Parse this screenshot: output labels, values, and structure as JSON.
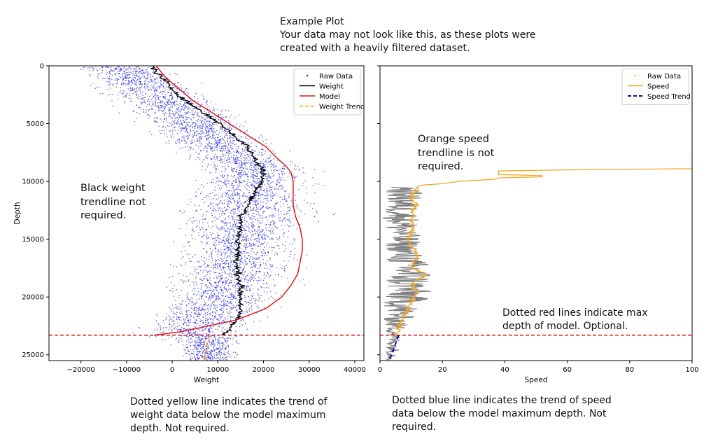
{
  "header": {
    "text": "Example Plot\nYour data may not look like this, as these plots were\ncreated with a heavily filtered dataset."
  },
  "annotations": {
    "weight_trendline": "Black weight\ntrendline not\nrequired.",
    "speed_trendline": "Orange speed\ntrendline is not\nrequired.",
    "red_lines": "Dotted red lines indicate max\ndepth of model.  Optional.",
    "yellow_line": "Dotted yellow line indicates the trend of\nweight data below the model maximum\ndepth.  Not required.",
    "blue_line": "Dotted blue line indicates the trend of speed\ndata below the model maximum depth.  Not\nrequired."
  },
  "colors": {
    "raw_weight": "#1f1fe6",
    "raw_speed": "#808080",
    "weight": "#000000",
    "model": "#e31a1c",
    "weight_trend": "#ff9f00",
    "speed": "#f5a623",
    "speed_trend": "#0000cc",
    "max_depth_line": "#cc0000"
  },
  "chart_data": [
    {
      "type": "scatter",
      "xlabel": "Weight",
      "ylabel": "Depth",
      "xlim": [
        -27000,
        42000
      ],
      "ylim": [
        25500,
        0
      ],
      "y_inverted": true,
      "xticks": [
        -20000,
        -10000,
        0,
        10000,
        20000,
        30000,
        40000
      ],
      "xtick_labels": [
        "−20000",
        "−10000",
        "0",
        "10000",
        "20000",
        "30000",
        "40000"
      ],
      "yticks": [
        0,
        5000,
        10000,
        15000,
        20000,
        25000
      ],
      "ytick_labels": [
        "0",
        "5000",
        "10000",
        "15000",
        "20000",
        "25000"
      ],
      "legend": {
        "placement": "top-right",
        "entries": [
          "Raw Data",
          "Weight",
          "Model",
          "Weight Trend"
        ]
      },
      "max_depth_line": 23300,
      "series": [
        {
          "name": "Weight",
          "depth": [
            0,
            1000,
            2000,
            3000,
            4000,
            5000,
            6000,
            7000,
            8000,
            8800,
            9500,
            10500,
            11500,
            12500,
            13000,
            14000,
            15000,
            16000,
            17000,
            18000,
            19000,
            20000,
            21000,
            22000,
            23000,
            23300
          ],
          "weight": [
            -4500,
            -2500,
            0,
            3000,
            6500,
            10500,
            13500,
            16500,
            18000,
            19500,
            20000,
            19000,
            17500,
            16000,
            15000,
            15000,
            14500,
            14500,
            14000,
            14500,
            15000,
            15000,
            15000,
            14000,
            12000,
            11000
          ]
        },
        {
          "name": "Model",
          "depth": [
            0,
            1000,
            2000,
            3000,
            4000,
            5000,
            6000,
            7000,
            8000,
            8700,
            9200,
            10000,
            11000,
            12000,
            13000,
            14000,
            15000,
            16000,
            17000,
            18000,
            19000,
            20000,
            21000,
            22000,
            23000,
            23300
          ],
          "weight": [
            -3500,
            -1500,
            1500,
            4500,
            8500,
            12500,
            16500,
            20500,
            23000,
            25000,
            26000,
            26500,
            26500,
            26500,
            27000,
            28000,
            28500,
            28500,
            28000,
            27500,
            26000,
            24000,
            20500,
            14000,
            2000,
            -4000
          ]
        },
        {
          "name": "Weight Trend",
          "depth": [
            23300,
            25500
          ],
          "weight": [
            8000,
            7000
          ]
        }
      ],
      "raw_data_envelope": {
        "depth": [
          0,
          2000,
          4000,
          6000,
          8000,
          9000,
          10000,
          12000,
          13000,
          14000,
          16000,
          18000,
          20000,
          22000,
          23000,
          24000,
          25500
        ],
        "min_weight": [
          -23000,
          -20000,
          -13000,
          -6000,
          0,
          5000,
          2000,
          -1000,
          -4000,
          -1000,
          -2000,
          -4000,
          -4000,
          -9000,
          -12000,
          -2000,
          0
        ],
        "max_weight": [
          0,
          9000,
          16000,
          22000,
          28000,
          33000,
          34000,
          34000,
          38000,
          32000,
          31000,
          30000,
          27000,
          23000,
          21000,
          18000,
          15000
        ]
      }
    },
    {
      "type": "line",
      "xlabel": "Speed",
      "ylabel": "",
      "xlim": [
        0,
        100
      ],
      "ylim": [
        25500,
        0
      ],
      "y_inverted": true,
      "xticks": [
        0,
        20,
        40,
        60,
        80,
        100
      ],
      "xtick_labels": [
        "0",
        "20",
        "40",
        "60",
        "80",
        "100"
      ],
      "yticks": [
        0,
        5000,
        10000,
        15000,
        20000,
        25000
      ],
      "legend": {
        "placement": "top-right",
        "entries": [
          "Raw Data",
          "Speed",
          "Speed Trend"
        ]
      },
      "max_depth_line": 23300,
      "series": [
        {
          "name": "Speed",
          "depth": [
            0,
            20,
            40,
            8900,
            9000,
            9100,
            9400,
            9500,
            9600,
            9700,
            9800,
            10000,
            10200,
            10300,
            10500,
            11000,
            11500,
            12000,
            12500,
            13000,
            13500,
            14000,
            14500,
            15000,
            15500,
            16000,
            16500,
            17000,
            17500,
            18000,
            18500,
            19000,
            19500,
            20000,
            20500,
            21000,
            21500,
            22000,
            22500,
            23000,
            23300
          ],
          "speed": [
            100,
            100,
            100,
            100,
            60,
            38,
            38,
            52,
            52,
            38,
            37,
            25,
            20,
            14,
            12,
            11,
            10,
            12,
            10,
            11,
            10,
            11,
            10,
            9,
            10,
            11,
            12,
            11,
            10,
            15,
            12,
            10,
            12,
            11,
            10,
            9,
            8,
            7,
            6,
            6,
            5
          ]
        },
        {
          "name": "Speed Trend",
          "depth": [
            23300,
            25500
          ],
          "speed": [
            6,
            3
          ]
        }
      ],
      "raw_data_envelope": {
        "depth": [
          10500,
          12000,
          14000,
          16000,
          18000,
          20000,
          22000,
          23300,
          25500
        ],
        "min_speed": [
          2,
          1,
          1,
          2,
          1,
          1,
          1,
          2,
          2
        ],
        "max_speed": [
          14,
          13,
          13,
          13,
          18,
          16,
          10,
          7,
          6
        ]
      }
    }
  ]
}
